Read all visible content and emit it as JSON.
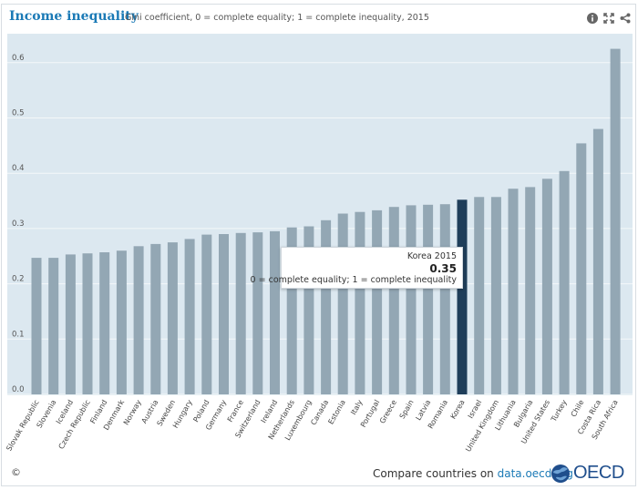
{
  "header": {
    "title": "Income inequality",
    "subtitle": "Gini coefficient, 0 = complete equality; 1 = complete inequality, 2015",
    "icons": [
      "info-icon",
      "fullscreen-icon",
      "share-icon"
    ]
  },
  "chart_data": {
    "type": "bar",
    "title": "Income inequality",
    "subtitle": "Gini coefficient, 0 = complete equality; 1 = complete inequality, 2015",
    "xlabel": "",
    "ylabel": "",
    "ylim": [
      0,
      0.65
    ],
    "yticks": [
      "0.0",
      "0.1",
      "0.2",
      "0.3",
      "0.4",
      "0.5",
      "0.6"
    ],
    "grid": true,
    "highlight": "Korea",
    "categories": [
      "Slovak Republic",
      "Slovenia",
      "Iceland",
      "Czech Republic",
      "Finland",
      "Denmark",
      "Norway",
      "Austria",
      "Sweden",
      "Hungary",
      "Poland",
      "Germany",
      "France",
      "Switzerland",
      "Ireland",
      "Netherlands",
      "Luxembourg",
      "Canada",
      "Estonia",
      "Italy",
      "Portugal",
      "Greece",
      "Spain",
      "Latvia",
      "Romania",
      "Korea",
      "Israel",
      "United Kingdom",
      "Lithuania",
      "Bulgaria",
      "United States",
      "Turkey",
      "Chile",
      "Costa Rica",
      "South Africa"
    ],
    "values": [
      0.247,
      0.247,
      0.253,
      0.255,
      0.257,
      0.26,
      0.268,
      0.272,
      0.275,
      0.281,
      0.289,
      0.29,
      0.292,
      0.293,
      0.295,
      0.302,
      0.304,
      0.315,
      0.327,
      0.33,
      0.333,
      0.339,
      0.342,
      0.343,
      0.344,
      0.352,
      0.357,
      0.357,
      0.372,
      0.375,
      0.39,
      0.404,
      0.454,
      0.48,
      0.625
    ],
    "colors": {
      "bar": "#93a7b4",
      "highlight": "#1f3e5a",
      "background": "#dce8f0",
      "grid": "#f4f7f9"
    }
  },
  "tooltip": {
    "label": "Korea 2015",
    "value": "0.35",
    "description": "0 = complete equality; 1 = complete inequality"
  },
  "footer": {
    "copyright": "©",
    "compare_text": "Compare countries on ",
    "compare_link": "data.oecd.org",
    "logo_text": "OECD"
  }
}
